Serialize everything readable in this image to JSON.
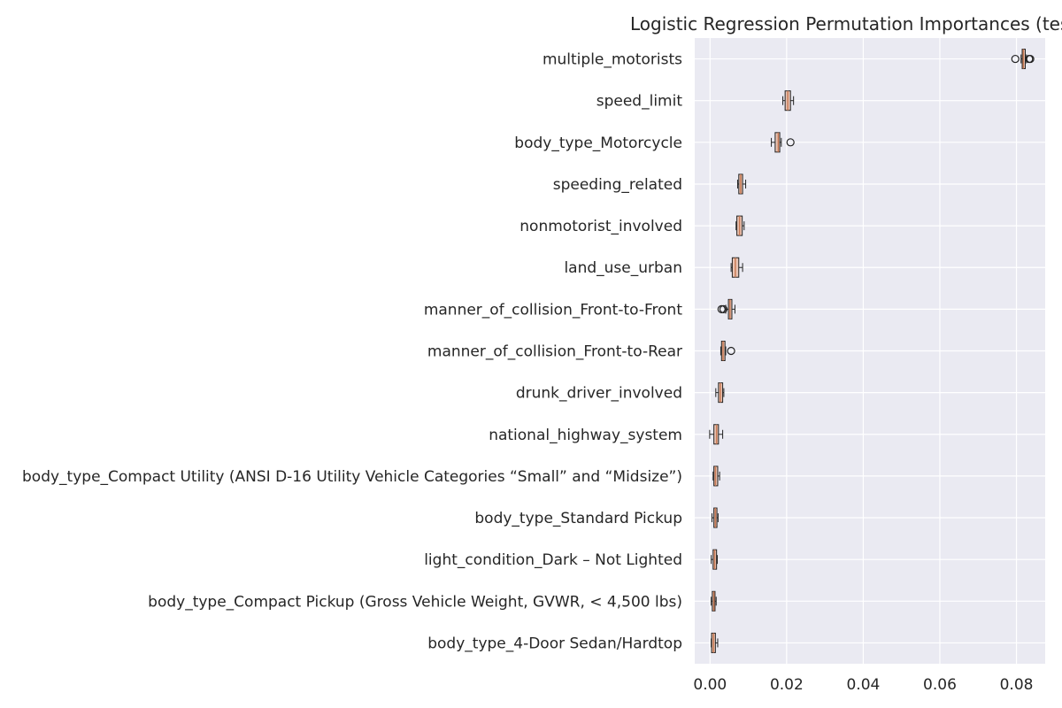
{
  "chart_data": {
    "type": "boxplot",
    "orientation": "horizontal",
    "title": "Logistic Regression Permutation Importances (tes",
    "xlabel": "",
    "ylabel": "",
    "xlim": [
      -0.004,
      0.0875
    ],
    "xticks": [
      0.0,
      0.02,
      0.04,
      0.06,
      0.08
    ],
    "xtick_labels": [
      "0.00",
      "0.02",
      "0.04",
      "0.06",
      "0.08"
    ],
    "grid": true,
    "background": "#eaeaf2",
    "grid_color": "#ffffff",
    "box_fill": "#e8c4b4",
    "median_color": "#c87a55",
    "features": [
      {
        "name": "multiple_motorists",
        "whislo": 0.0812,
        "q1": 0.0815,
        "med": 0.0818,
        "q3": 0.0823,
        "whishi": 0.0826,
        "fliers": [
          0.0797,
          0.0833,
          0.0836
        ]
      },
      {
        "name": "speed_limit",
        "whislo": 0.019,
        "q1": 0.0196,
        "med": 0.0203,
        "q3": 0.021,
        "whishi": 0.0218,
        "fliers": []
      },
      {
        "name": "body_type_Motorcycle",
        "whislo": 0.016,
        "q1": 0.017,
        "med": 0.0178,
        "q3": 0.0182,
        "whishi": 0.0186,
        "fliers": [
          0.021
        ]
      },
      {
        "name": "speeding_related",
        "whislo": 0.0072,
        "q1": 0.0075,
        "med": 0.008,
        "q3": 0.0085,
        "whishi": 0.0093,
        "fliers": []
      },
      {
        "name": "nonmotorist_involved",
        "whislo": 0.0068,
        "q1": 0.007,
        "med": 0.0077,
        "q3": 0.0084,
        "whishi": 0.0089,
        "fliers": []
      },
      {
        "name": "land_use_urban",
        "whislo": 0.0055,
        "q1": 0.0058,
        "med": 0.0066,
        "q3": 0.0075,
        "whishi": 0.0085,
        "fliers": []
      },
      {
        "name": "manner_of_collision_Front-to-Front",
        "whislo": 0.0041,
        "q1": 0.0048,
        "med": 0.0052,
        "q3": 0.0057,
        "whishi": 0.0065,
        "fliers": [
          0.003,
          0.0035
        ]
      },
      {
        "name": "manner_of_collision_Front-to-Rear",
        "whislo": 0.0028,
        "q1": 0.003,
        "med": 0.0034,
        "q3": 0.0039,
        "whishi": 0.0041,
        "fliers": [
          0.0055
        ]
      },
      {
        "name": "drunk_driver_involved",
        "whislo": 0.0015,
        "q1": 0.0022,
        "med": 0.0027,
        "q3": 0.0033,
        "whishi": 0.0036,
        "fliers": []
      },
      {
        "name": "national_highway_system",
        "whislo": -0.0001,
        "q1": 0.001,
        "med": 0.0017,
        "q3": 0.0022,
        "whishi": 0.0033,
        "fliers": []
      },
      {
        "name": "body_type_Compact Utility (ANSI D-16 Utility Vehicle Categories “Small” and “Midsize”)",
        "whislo": 0.0008,
        "q1": 0.001,
        "med": 0.0014,
        "q3": 0.002,
        "whishi": 0.0025,
        "fliers": []
      },
      {
        "name": "body_type_Standard Pickup",
        "whislo": 0.0005,
        "q1": 0.001,
        "med": 0.0014,
        "q3": 0.0018,
        "whishi": 0.0021,
        "fliers": []
      },
      {
        "name": "light_condition_Dark – Not Lighted",
        "whislo": 0.0003,
        "q1": 0.0008,
        "med": 0.0012,
        "q3": 0.0017,
        "whishi": 0.0019,
        "fliers": []
      },
      {
        "name": "body_type_Compact Pickup (Gross Vehicle Weight, GVWR, < 4,500 lbs)",
        "whislo": 0.0003,
        "q1": 0.0006,
        "med": 0.001,
        "q3": 0.0013,
        "whishi": 0.0016,
        "fliers": []
      },
      {
        "name": "body_type_4-Door Sedan/Hardtop",
        "whislo": 0.0003,
        "q1": 0.0004,
        "med": 0.0009,
        "q3": 0.0014,
        "whishi": 0.002,
        "fliers": []
      }
    ]
  }
}
